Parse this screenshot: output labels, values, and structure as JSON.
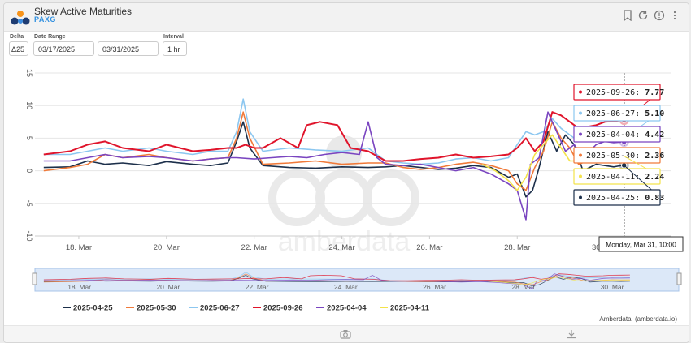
{
  "header": {
    "title": "Skew Active Maturities",
    "subtitle": "PAXG",
    "icons": [
      "bookmark-icon",
      "refresh-icon",
      "info-icon",
      "more-icon"
    ]
  },
  "controls": {
    "delta": {
      "label": "Delta",
      "value": "Δ25"
    },
    "date_range": {
      "label": "Date Range",
      "start": "03/17/2025",
      "end": "03/31/2025"
    },
    "interval": {
      "label": "Interval",
      "value": "1 hr"
    }
  },
  "watermark": "amberdata",
  "credit": "Amberdata, (amberdata.io)",
  "crosshair_label": "Monday, Mar 31, 10:00",
  "footer": {
    "icons": [
      "camera-icon",
      "download-icon"
    ]
  },
  "chart_data": {
    "type": "line",
    "x_range": [
      "2025-03-17T00:00",
      "2025-03-31T12:00"
    ],
    "ylim": [
      -10,
      15
    ],
    "yticks": [
      -10,
      -5,
      0,
      5,
      10,
      15
    ],
    "xticks": [
      "18. Mar",
      "20. Mar",
      "22. Mar",
      "24. Mar",
      "26. Mar",
      "28. Mar",
      "30. Mar"
    ],
    "navigator_ticks": [
      "18. Mar",
      "20. Mar",
      "22. Mar",
      "24. Mar",
      "26. Mar",
      "28. Mar",
      "30. Mar"
    ],
    "grid": true,
    "legend_position": "bottom",
    "series": [
      {
        "name": "2025-04-25",
        "color": "#1c2f4a",
        "last": 0.83,
        "points": [
          [
            0.2,
            0.5
          ],
          [
            0.8,
            0.6
          ],
          [
            1.2,
            1.5
          ],
          [
            1.6,
            1
          ],
          [
            2.0,
            1.2
          ],
          [
            2.6,
            0.8
          ],
          [
            3.0,
            1.4
          ],
          [
            3.6,
            1
          ],
          [
            4.0,
            0.8
          ],
          [
            4.4,
            1.2
          ],
          [
            4.6,
            4.5
          ],
          [
            4.75,
            7.5
          ],
          [
            4.9,
            3.5
          ],
          [
            5.2,
            0.8
          ],
          [
            5.8,
            0.5
          ],
          [
            6.4,
            0.4
          ],
          [
            7.0,
            0.6
          ],
          [
            7.6,
            0.5
          ],
          [
            8.0,
            0.6
          ],
          [
            8.4,
            0.8
          ],
          [
            8.8,
            0.5
          ],
          [
            9.2,
            0.2
          ],
          [
            9.6,
            0.4
          ],
          [
            10.0,
            0.8
          ],
          [
            10.4,
            0.5
          ],
          [
            10.8,
            -1
          ],
          [
            11.0,
            -0.5
          ],
          [
            11.2,
            -4
          ],
          [
            11.35,
            -3
          ],
          [
            11.5,
            0.5
          ],
          [
            11.7,
            6
          ],
          [
            11.9,
            3
          ],
          [
            12.1,
            5.5
          ],
          [
            12.3,
            4
          ],
          [
            12.5,
            0
          ],
          [
            12.8,
            1
          ],
          [
            13.0,
            0.8
          ],
          [
            13.2,
            0.6
          ],
          [
            13.4,
            0.83
          ]
        ]
      },
      {
        "name": "2025-05-30",
        "color": "#f07a3a",
        "last": 2.36,
        "points": [
          [
            0.2,
            0
          ],
          [
            0.8,
            0.5
          ],
          [
            1.2,
            1
          ],
          [
            1.6,
            2.5
          ],
          [
            2.0,
            2
          ],
          [
            2.6,
            2.5
          ],
          [
            3.0,
            2
          ],
          [
            3.6,
            1.5
          ],
          [
            4.0,
            1.8
          ],
          [
            4.4,
            2
          ],
          [
            4.6,
            5
          ],
          [
            4.75,
            9
          ],
          [
            4.9,
            5
          ],
          [
            5.2,
            1
          ],
          [
            5.8,
            1.2
          ],
          [
            6.4,
            1.5
          ],
          [
            7.0,
            1
          ],
          [
            7.6,
            1.2
          ],
          [
            8.0,
            1.2
          ],
          [
            8.4,
            0.5
          ],
          [
            8.8,
            0.2
          ],
          [
            9.2,
            0.5
          ],
          [
            9.6,
            1
          ],
          [
            10.0,
            1.3
          ],
          [
            10.4,
            0.8
          ],
          [
            10.8,
            0
          ],
          [
            11.0,
            -2
          ],
          [
            11.2,
            -3
          ],
          [
            11.4,
            0.5
          ],
          [
            11.6,
            3
          ],
          [
            11.8,
            7.5
          ],
          [
            12.0,
            5
          ],
          [
            12.2,
            3.5
          ],
          [
            12.4,
            1
          ],
          [
            12.8,
            2
          ],
          [
            13.0,
            2.5
          ],
          [
            13.2,
            2.2
          ],
          [
            13.4,
            2.36
          ]
        ]
      },
      {
        "name": "2025-06-27",
        "color": "#8cc7f0",
        "last": 5.1,
        "points": [
          [
            0.2,
            2.5
          ],
          [
            0.8,
            2.5
          ],
          [
            1.2,
            3
          ],
          [
            1.6,
            3.5
          ],
          [
            2.0,
            3
          ],
          [
            2.6,
            3.5
          ],
          [
            3.0,
            3
          ],
          [
            3.6,
            2.5
          ],
          [
            4.0,
            3
          ],
          [
            4.4,
            3
          ],
          [
            4.6,
            6
          ],
          [
            4.75,
            11
          ],
          [
            4.9,
            6
          ],
          [
            5.2,
            3
          ],
          [
            5.8,
            3.5
          ],
          [
            6.4,
            3.2
          ],
          [
            7.0,
            3
          ],
          [
            7.6,
            3.5
          ],
          [
            8.0,
            1.5
          ],
          [
            8.4,
            1.2
          ],
          [
            8.8,
            1
          ],
          [
            9.2,
            1.2
          ],
          [
            9.6,
            1.8
          ],
          [
            10.0,
            2
          ],
          [
            10.4,
            1.5
          ],
          [
            10.8,
            2
          ],
          [
            11.0,
            4
          ],
          [
            11.2,
            6
          ],
          [
            11.4,
            5.5
          ],
          [
            11.6,
            6
          ],
          [
            11.8,
            8
          ],
          [
            12.0,
            6.5
          ],
          [
            12.2,
            5.5
          ],
          [
            12.4,
            4.5
          ],
          [
            12.8,
            5
          ],
          [
            13.0,
            5.5
          ],
          [
            13.2,
            5
          ],
          [
            13.4,
            5.1
          ]
        ]
      },
      {
        "name": "2025-09-26",
        "color": "#e0142b",
        "last": 7.77,
        "points": [
          [
            0.2,
            2.5
          ],
          [
            0.8,
            3
          ],
          [
            1.2,
            4
          ],
          [
            1.6,
            4.5
          ],
          [
            2.0,
            3.5
          ],
          [
            2.6,
            3
          ],
          [
            3.0,
            4
          ],
          [
            3.6,
            3
          ],
          [
            4.0,
            3.2
          ],
          [
            4.4,
            3.5
          ],
          [
            4.6,
            3.5
          ],
          [
            4.8,
            4
          ],
          [
            5.0,
            3.5
          ],
          [
            5.2,
            3.5
          ],
          [
            5.6,
            5
          ],
          [
            6.0,
            3.5
          ],
          [
            6.2,
            7
          ],
          [
            6.5,
            7.5
          ],
          [
            6.9,
            7
          ],
          [
            7.2,
            3.5
          ],
          [
            7.6,
            3
          ],
          [
            8.0,
            1.5
          ],
          [
            8.4,
            1.5
          ],
          [
            8.8,
            1.8
          ],
          [
            9.2,
            2
          ],
          [
            9.6,
            2.5
          ],
          [
            10.0,
            2
          ],
          [
            10.4,
            2.2
          ],
          [
            10.8,
            2.5
          ],
          [
            11.0,
            3.5
          ],
          [
            11.2,
            5
          ],
          [
            11.4,
            3
          ],
          [
            11.6,
            4.5
          ],
          [
            11.8,
            9
          ],
          [
            12.0,
            8.5
          ],
          [
            12.2,
            7.5
          ],
          [
            12.4,
            6.5
          ],
          [
            12.8,
            7
          ],
          [
            13.0,
            7.5
          ],
          [
            13.2,
            7.6
          ],
          [
            13.4,
            7.77
          ]
        ]
      },
      {
        "name": "2025-04-04",
        "color": "#7a45c0",
        "last": 4.42,
        "points": [
          [
            0.2,
            1.5
          ],
          [
            0.8,
            1.5
          ],
          [
            1.2,
            2
          ],
          [
            1.6,
            2.5
          ],
          [
            2.0,
            2
          ],
          [
            2.6,
            2.2
          ],
          [
            3.0,
            2
          ],
          [
            3.6,
            1.5
          ],
          [
            4.0,
            1.8
          ],
          [
            4.4,
            2
          ],
          [
            4.6,
            2
          ],
          [
            5.0,
            1.8
          ],
          [
            5.4,
            2
          ],
          [
            5.8,
            2.2
          ],
          [
            6.2,
            2
          ],
          [
            6.6,
            2.5
          ],
          [
            7.0,
            2.8
          ],
          [
            7.4,
            2.5
          ],
          [
            7.6,
            7.5
          ],
          [
            7.8,
            2
          ],
          [
            8.0,
            1
          ],
          [
            8.4,
            0.8
          ],
          [
            8.8,
            1
          ],
          [
            9.2,
            0.5
          ],
          [
            9.6,
            0
          ],
          [
            10.0,
            0.5
          ],
          [
            10.4,
            -0.5
          ],
          [
            10.8,
            -2
          ],
          [
            11.0,
            -3
          ],
          [
            11.2,
            -7.5
          ],
          [
            11.3,
            1
          ],
          [
            11.5,
            2
          ],
          [
            11.7,
            9
          ],
          [
            11.9,
            6
          ],
          [
            12.1,
            3
          ],
          [
            12.3,
            4
          ],
          [
            12.5,
            2
          ],
          [
            12.8,
            4
          ],
          [
            13.0,
            4.5
          ],
          [
            13.2,
            4.3
          ],
          [
            13.4,
            4.42
          ]
        ]
      },
      {
        "name": "2025-04-11",
        "color": "#f4e34a",
        "last": 2.24,
        "points": [
          [
            10.2,
            1
          ],
          [
            10.5,
            0
          ],
          [
            10.8,
            -1.5
          ],
          [
            11.0,
            -3
          ],
          [
            11.2,
            -1
          ],
          [
            11.4,
            2.5
          ],
          [
            11.6,
            4
          ],
          [
            11.8,
            5.5
          ],
          [
            12.0,
            3.5
          ],
          [
            12.2,
            1.5
          ],
          [
            12.5,
            1.5
          ],
          [
            12.8,
            2
          ],
          [
            13.0,
            2.2
          ],
          [
            13.2,
            2.3
          ],
          [
            13.4,
            2.24
          ]
        ]
      }
    ]
  }
}
